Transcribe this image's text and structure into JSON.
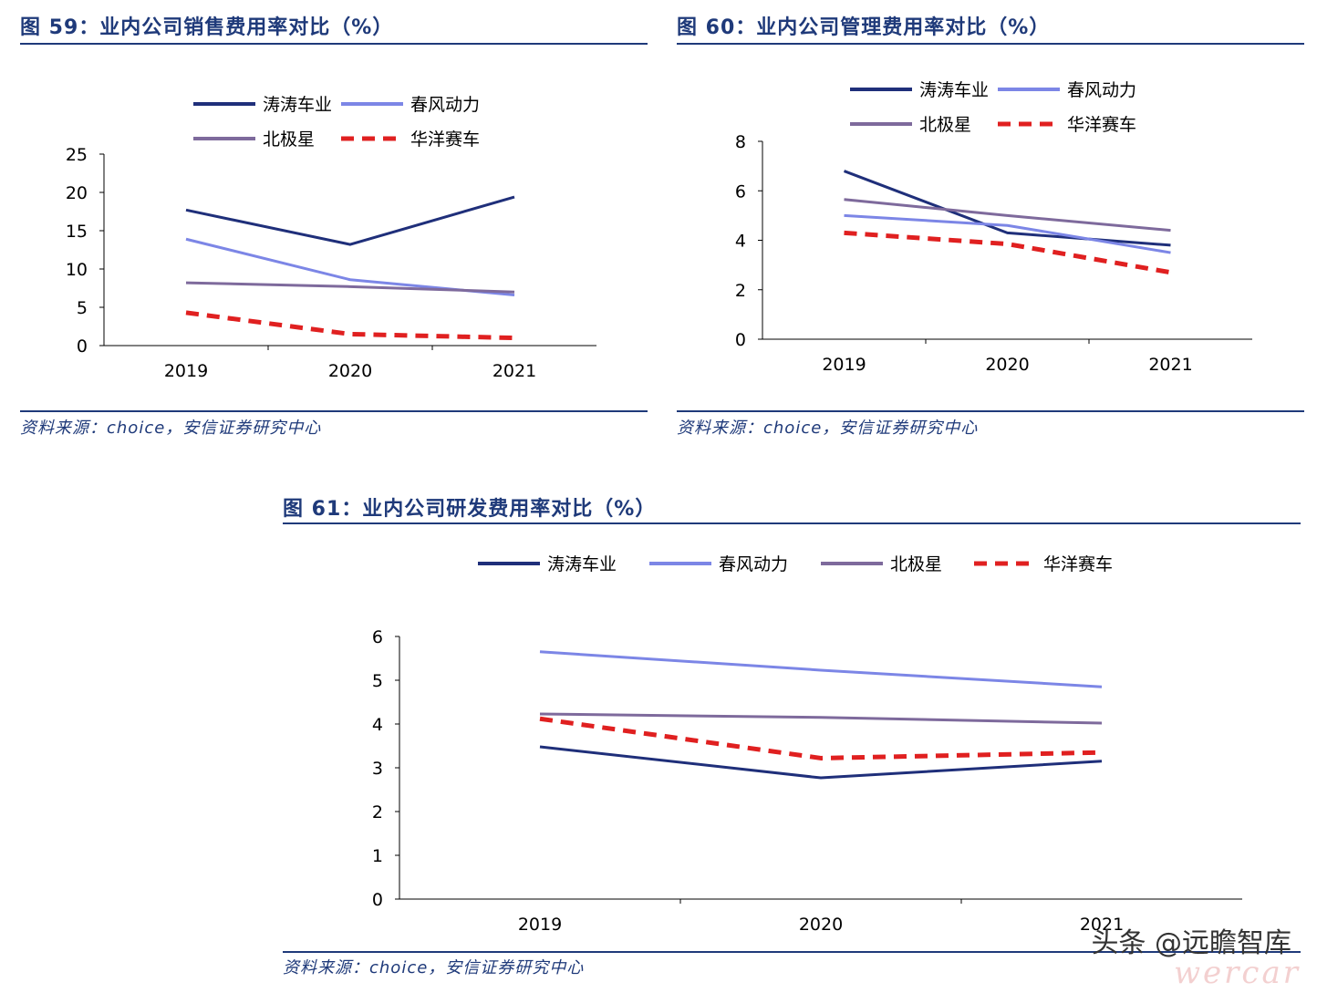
{
  "figures": [
    {
      "title": "图 59：业内公司销售费用率对比（%）",
      "source": "资料来源：choice，安信证券研究中心"
    },
    {
      "title": "图 60：业内公司管理费用率对比（%）",
      "source": "资料来源：choice，安信证券研究中心"
    },
    {
      "title": "图 61：业内公司研发费用率对比（%）",
      "source": "资料来源：choice，安信证券研究中心"
    }
  ],
  "watermark": {
    "text": "头条 @远瞻智库",
    "overlay": "wercar"
  },
  "colors": {
    "title": "#1f3a7a",
    "series": [
      "#1f2f7a",
      "#7c86e6",
      "#7e6a9c",
      "#e02020"
    ]
  },
  "chart_data": [
    {
      "type": "line",
      "title": "图 59：业内公司销售费用率对比（%）",
      "categories": [
        "2019",
        "2020",
        "2021"
      ],
      "ylim": [
        0,
        25
      ],
      "yticks": [
        0,
        5,
        10,
        15,
        20,
        25
      ],
      "legend": "top",
      "grid": false,
      "series": [
        {
          "name": "涛涛车业",
          "values": [
            17.7,
            13.2,
            19.4
          ]
        },
        {
          "name": "春风动力",
          "values": [
            13.9,
            8.6,
            6.6
          ]
        },
        {
          "name": "北极星",
          "values": [
            8.2,
            7.7,
            7.0
          ]
        },
        {
          "name": "华洋赛车",
          "values": [
            4.3,
            1.5,
            1.0
          ]
        }
      ]
    },
    {
      "type": "line",
      "title": "图 60：业内公司管理费用率对比（%）",
      "categories": [
        "2019",
        "2020",
        "2021"
      ],
      "ylim": [
        0,
        8
      ],
      "yticks": [
        0,
        2,
        4,
        6,
        8
      ],
      "legend": "top",
      "grid": false,
      "series": [
        {
          "name": "涛涛车业",
          "values": [
            6.8,
            4.3,
            3.8
          ]
        },
        {
          "name": "春风动力",
          "values": [
            5.0,
            4.6,
            3.5
          ]
        },
        {
          "name": "北极星",
          "values": [
            5.65,
            5.0,
            4.4
          ]
        },
        {
          "name": "华洋赛车",
          "values": [
            4.3,
            3.85,
            2.7
          ]
        }
      ]
    },
    {
      "type": "line",
      "title": "图 61：业内公司研发费用率对比（%）",
      "categories": [
        "2019",
        "2020",
        "2021"
      ],
      "ylim": [
        0,
        6
      ],
      "yticks": [
        0,
        1,
        2,
        3,
        4,
        5,
        6
      ],
      "legend": "top",
      "grid": false,
      "series": [
        {
          "name": "涛涛车业",
          "values": [
            3.48,
            2.77,
            3.15
          ]
        },
        {
          "name": "春风动力",
          "values": [
            5.65,
            5.23,
            4.85
          ]
        },
        {
          "name": "北极星",
          "values": [
            4.23,
            4.15,
            4.02
          ]
        },
        {
          "name": "华洋赛车",
          "values": [
            4.12,
            3.22,
            3.35
          ]
        }
      ]
    }
  ]
}
